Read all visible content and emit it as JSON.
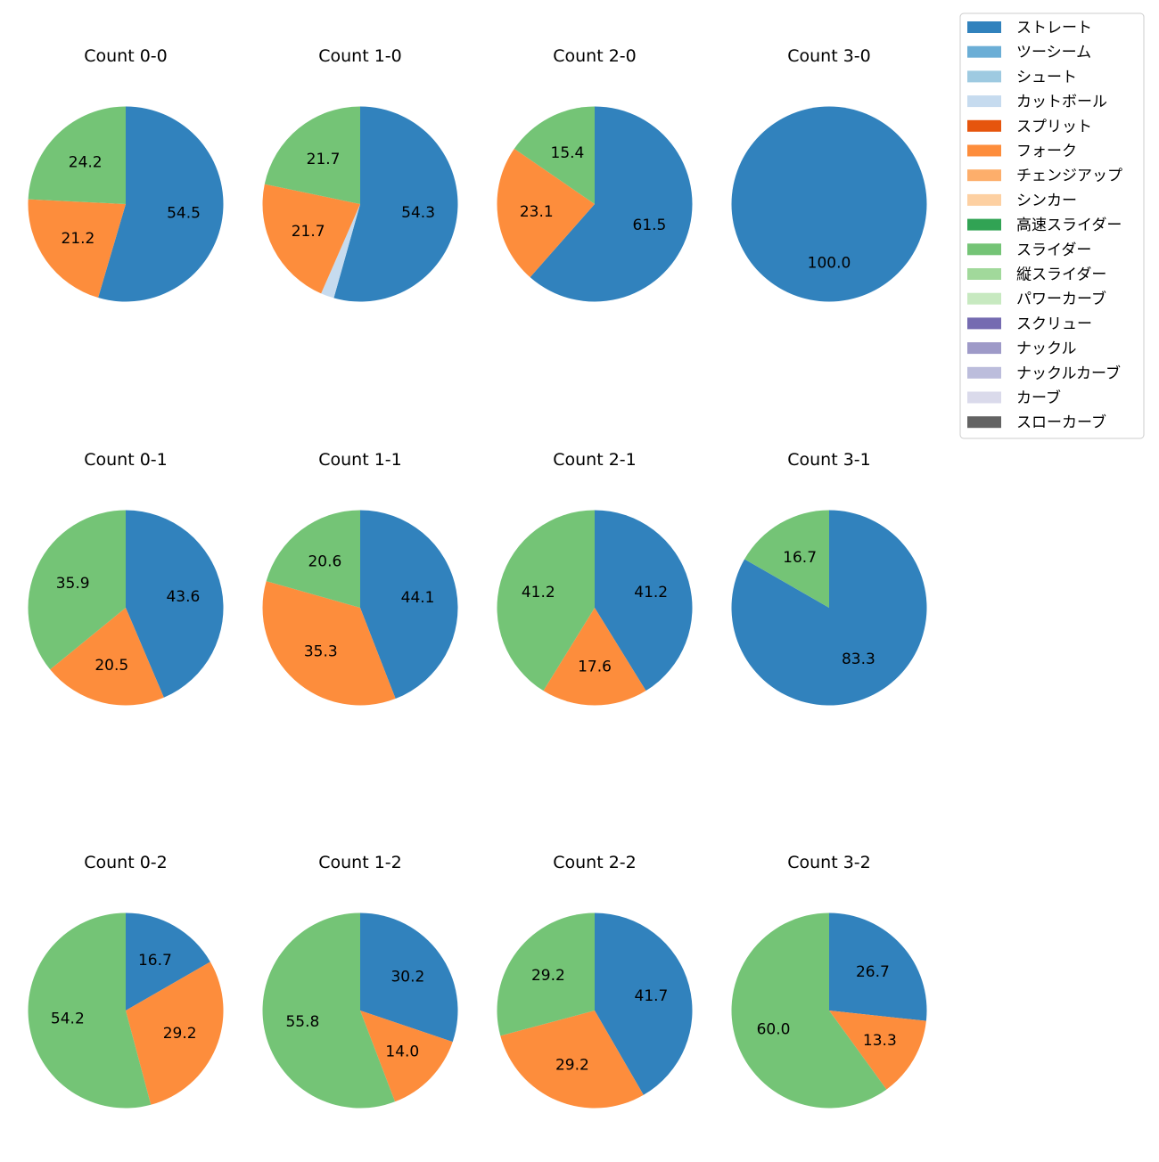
{
  "legend": {
    "items": [
      {
        "label": "ストレート",
        "color": "#3182bd"
      },
      {
        "label": "ツーシーム",
        "color": "#6baed6"
      },
      {
        "label": "シュート",
        "color": "#9ecae1"
      },
      {
        "label": "カットボール",
        "color": "#c6dbef"
      },
      {
        "label": "スプリット",
        "color": "#e6550d"
      },
      {
        "label": "フォーク",
        "color": "#fd8d3c"
      },
      {
        "label": "チェンジアップ",
        "color": "#fdae6b"
      },
      {
        "label": "シンカー",
        "color": "#fdd0a2"
      },
      {
        "label": "高速スライダー",
        "color": "#31a354"
      },
      {
        "label": "スライダー",
        "color": "#74c476"
      },
      {
        "label": "縦スライダー",
        "color": "#a1d99b"
      },
      {
        "label": "パワーカーブ",
        "color": "#c7e9c0"
      },
      {
        "label": "スクリュー",
        "color": "#756bb1"
      },
      {
        "label": "ナックル",
        "color": "#9e9ac8"
      },
      {
        "label": "ナックルカーブ",
        "color": "#bcbddc"
      },
      {
        "label": "カーブ",
        "color": "#dadaeb"
      },
      {
        "label": "スローカーブ",
        "color": "#636363"
      }
    ]
  },
  "chart_data": [
    {
      "type": "pie",
      "title": "Count 0-0",
      "slices": [
        {
          "pitch": "ストレート",
          "value": 54.5
        },
        {
          "pitch": "フォーク",
          "value": 21.2
        },
        {
          "pitch": "スライダー",
          "value": 24.2
        }
      ]
    },
    {
      "type": "pie",
      "title": "Count 1-0",
      "slices": [
        {
          "pitch": "ストレート",
          "value": 54.3
        },
        {
          "pitch": "カットボール",
          "value": 2.2,
          "label": ""
        },
        {
          "pitch": "フォーク",
          "value": 21.7
        },
        {
          "pitch": "スライダー",
          "value": 21.7
        }
      ]
    },
    {
      "type": "pie",
      "title": "Count 2-0",
      "slices": [
        {
          "pitch": "ストレート",
          "value": 61.5
        },
        {
          "pitch": "フォーク",
          "value": 23.1
        },
        {
          "pitch": "スライダー",
          "value": 15.4
        }
      ]
    },
    {
      "type": "pie",
      "title": "Count 3-0",
      "slices": [
        {
          "pitch": "ストレート",
          "value": 100.0
        }
      ]
    },
    {
      "type": "pie",
      "title": "Count 0-1",
      "slices": [
        {
          "pitch": "ストレート",
          "value": 43.6
        },
        {
          "pitch": "フォーク",
          "value": 20.5
        },
        {
          "pitch": "スライダー",
          "value": 35.9
        }
      ]
    },
    {
      "type": "pie",
      "title": "Count 1-1",
      "slices": [
        {
          "pitch": "ストレート",
          "value": 44.1
        },
        {
          "pitch": "フォーク",
          "value": 35.3
        },
        {
          "pitch": "スライダー",
          "value": 20.6
        }
      ]
    },
    {
      "type": "pie",
      "title": "Count 2-1",
      "slices": [
        {
          "pitch": "ストレート",
          "value": 41.2
        },
        {
          "pitch": "フォーク",
          "value": 17.6
        },
        {
          "pitch": "スライダー",
          "value": 41.2
        }
      ]
    },
    {
      "type": "pie",
      "title": "Count 3-1",
      "slices": [
        {
          "pitch": "ストレート",
          "value": 83.3
        },
        {
          "pitch": "スライダー",
          "value": 16.7
        }
      ]
    },
    {
      "type": "pie",
      "title": "Count 0-2",
      "slices": [
        {
          "pitch": "ストレート",
          "value": 16.7
        },
        {
          "pitch": "フォーク",
          "value": 29.2
        },
        {
          "pitch": "スライダー",
          "value": 54.2
        }
      ]
    },
    {
      "type": "pie",
      "title": "Count 1-2",
      "slices": [
        {
          "pitch": "ストレート",
          "value": 30.2
        },
        {
          "pitch": "フォーク",
          "value": 14.0
        },
        {
          "pitch": "スライダー",
          "value": 55.8
        }
      ]
    },
    {
      "type": "pie",
      "title": "Count 2-2",
      "slices": [
        {
          "pitch": "ストレート",
          "value": 41.7
        },
        {
          "pitch": "フォーク",
          "value": 29.2
        },
        {
          "pitch": "スライダー",
          "value": 29.2
        }
      ]
    },
    {
      "type": "pie",
      "title": "Count 3-2",
      "slices": [
        {
          "pitch": "ストレート",
          "value": 26.7
        },
        {
          "pitch": "フォーク",
          "value": 13.3
        },
        {
          "pitch": "スライダー",
          "value": 60.0
        }
      ]
    }
  ]
}
